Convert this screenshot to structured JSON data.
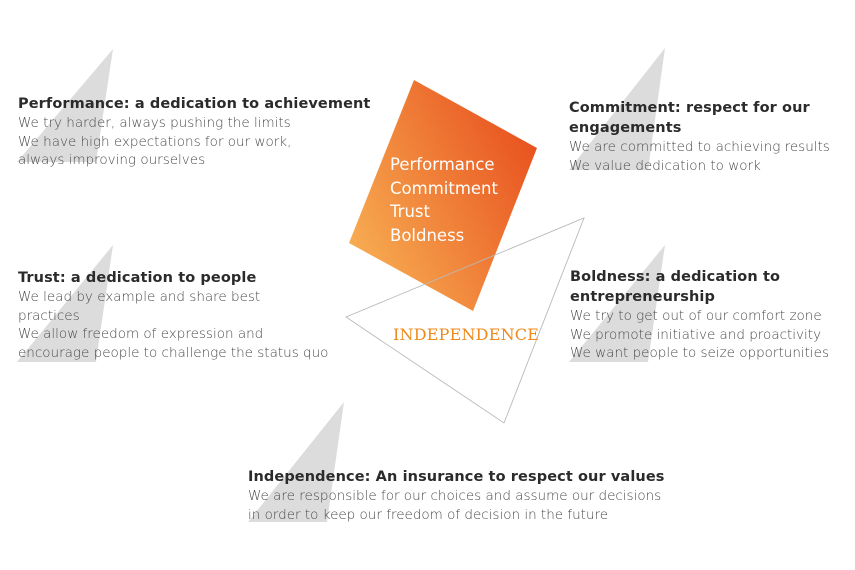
{
  "center": {
    "values": [
      "Performance",
      "Commitment",
      "Trust",
      "Boldness"
    ],
    "base_label": "INDEPENDENCE"
  },
  "blocks": {
    "performance": {
      "heading": "Performance: a dedication to achievement",
      "lines": [
        "We try harder, always pushing the limits",
        "We have high expectations for our work,",
        "always improving ourselves"
      ]
    },
    "commitment": {
      "heading": [
        "Commitment: respect for our",
        "engagements"
      ],
      "lines": [
        "We are committed to achieving results",
        "We value dedication to work"
      ]
    },
    "trust": {
      "heading": "Trust: a dedication to people",
      "lines": [
        "We lead by example and share best",
        "practices",
        "We allow freedom of expression and",
        "encourage people to challenge the status quo"
      ]
    },
    "boldness": {
      "heading": [
        "Boldness: a dedication to",
        "entrepreneurship"
      ],
      "lines": [
        "We try to get out of our comfort zone",
        "We promote initiative and proactivity",
        "We want people to seize opportunities"
      ]
    },
    "independence": {
      "heading": "Independence: An insurance to respect our values",
      "lines": [
        "We are responsible for our choices and assume our decisions",
        "in order to keep our freedom of decision in the future"
      ]
    }
  },
  "colors": {
    "gradient_start": "#f7ad52",
    "gradient_end": "#e8521f",
    "label_orange": "#ee8a1c",
    "pointer_grey": "#dcdcdc",
    "heading_text": "#2b2b2b",
    "body_text": "#4a4a4a"
  }
}
